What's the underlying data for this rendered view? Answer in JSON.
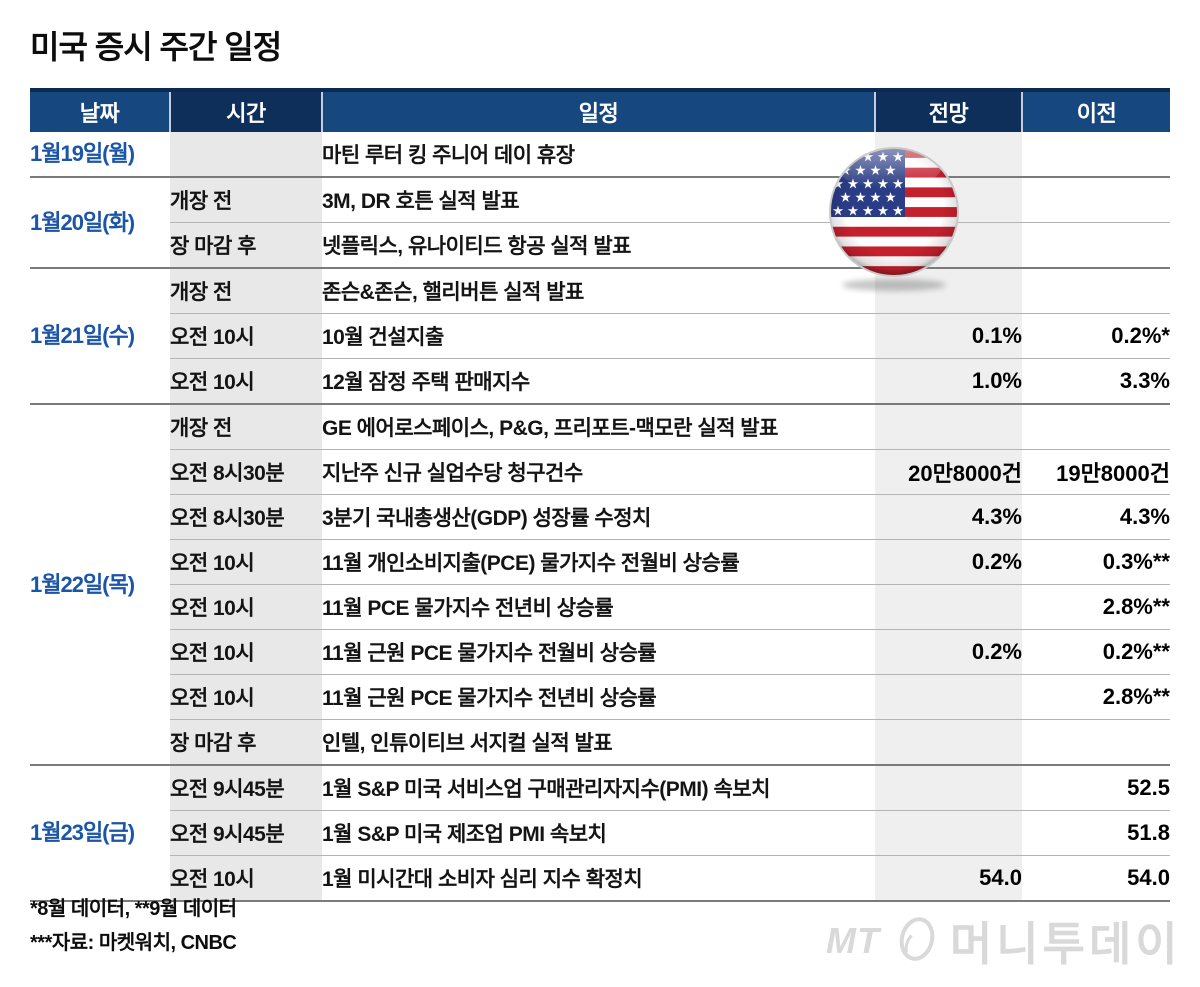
{
  "title": "미국 증시 주간 일정",
  "table": {
    "headers": [
      "날짜",
      "시간",
      "일정",
      "전망",
      "이전"
    ],
    "groups": [
      {
        "date": "1월19일(월)",
        "rows": [
          {
            "time": "",
            "event": "마틴 루터 킹 주니어 데이 휴장",
            "forecast": "",
            "previous": ""
          }
        ]
      },
      {
        "date": "1월20일(화)",
        "rows": [
          {
            "time": "개장 전",
            "event": "3M, DR 호튼 실적 발표",
            "forecast": "",
            "previous": ""
          },
          {
            "time": "장 마감 후",
            "event": "넷플릭스, 유나이티드 항공 실적 발표",
            "forecast": "",
            "previous": ""
          }
        ]
      },
      {
        "date": "1월21일(수)",
        "rows": [
          {
            "time": "개장 전",
            "event": "존슨&존슨, 핼리버튼 실적 발표",
            "forecast": "",
            "previous": ""
          },
          {
            "time": "오전 10시",
            "event": "10월 건설지출",
            "forecast": "0.1%",
            "previous": "0.2%*"
          },
          {
            "time": "오전 10시",
            "event": "12월 잠정 주택 판매지수",
            "forecast": "1.0%",
            "previous": "3.3%"
          }
        ]
      },
      {
        "date": "1월22일(목)",
        "rows": [
          {
            "time": "개장 전",
            "event": "GE 에어로스페이스, P&G, 프리포트-맥모란 실적 발표",
            "forecast": "",
            "previous": ""
          },
          {
            "time": "오전 8시30분",
            "event": "지난주 신규 실업수당 청구건수",
            "forecast": "20만8000건",
            "previous": "19만8000건"
          },
          {
            "time": "오전 8시30분",
            "event": "3분기 국내총생산(GDP) 성장률 수정치",
            "forecast": "4.3%",
            "previous": "4.3%"
          },
          {
            "time": "오전 10시",
            "event": "11월 개인소비지출(PCE) 물가지수 전월비 상승률",
            "forecast": "0.2%",
            "previous": "0.3%**"
          },
          {
            "time": "오전 10시",
            "event": "11월 PCE 물가지수 전년비 상승률",
            "forecast": "",
            "previous": "2.8%**"
          },
          {
            "time": "오전 10시",
            "event": "11월 근원 PCE 물가지수 전월비 상승률",
            "forecast": "0.2%",
            "previous": "0.2%**"
          },
          {
            "time": "오전 10시",
            "event": "11월 근원 PCE 물가지수 전년비 상승률",
            "forecast": "",
            "previous": "2.8%**"
          },
          {
            "time": "장 마감 후",
            "event": "인텔, 인튜이티브 서지컬 실적 발표",
            "forecast": "",
            "previous": ""
          }
        ]
      },
      {
        "date": "1월23일(금)",
        "rows": [
          {
            "time": "오전 9시45분",
            "event": "1월 S&P 미국 서비스업 구매관리자지수(PMI) 속보치",
            "forecast": "",
            "previous": "52.5"
          },
          {
            "time": "오전 9시45분",
            "event": "1월 S&P 미국 제조업 PMI 속보치",
            "forecast": "",
            "previous": "51.8"
          },
          {
            "time": "오전 10시",
            "event": "1월 미시간대 소비자 심리 지수 확정치",
            "forecast": "54.0",
            "previous": "54.0"
          }
        ]
      }
    ]
  },
  "footnotes": [
    "*8월 데이터, **9월 데이터",
    "***자료: 마켓워치, CNBC"
  ],
  "logo": {
    "mt": "MT",
    "name": "머니투데이"
  },
  "flag": {
    "name": "us-flag"
  },
  "colors": {
    "header_blue": "#16477f",
    "header_navy": "#0e2f5a",
    "date_text": "#1b55a8",
    "time_bg": "#e8e8e8",
    "forecast_bg": "#efefef",
    "group_line": "#7b7b7b",
    "row_line": "#b4b4b4",
    "flag_red": "#c5202e",
    "flag_blue": "#2a3c85",
    "logo_gray": "#d9d9d9"
  }
}
